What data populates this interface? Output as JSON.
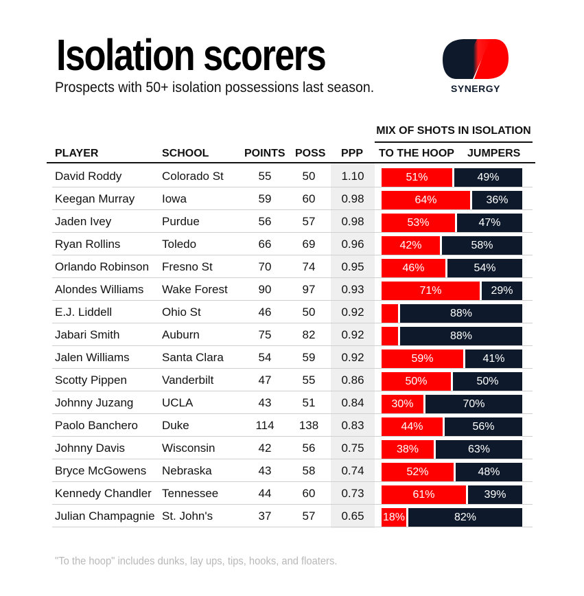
{
  "title": "Isolation scorers",
  "subtitle": "Prospects with 50+ isolation possessions last season.",
  "logo": {
    "text": "SYNERGY",
    "icon": "synergy-logo-icon"
  },
  "footnote": "\"To the hoop\" includes dunks, lay ups, tips, hooks, and floaters.",
  "colors": {
    "hoop": "#ff0000",
    "jumpers": "#0e1a2b",
    "ppp_band": "#efefef"
  },
  "chart_data": {
    "type": "table",
    "title": "Isolation scorers",
    "subtitle": "Prospects with 50+ isolation possessions last season.",
    "group_header": "MIX OF SHOTS IN ISOLATION",
    "columns": [
      "PLAYER",
      "SCHOOL",
      "POINTS",
      "POSS",
      "PPP",
      "TO THE HOOP",
      "JUMPERS"
    ],
    "rows": [
      {
        "player": "David Roddy",
        "school": "Colorado St",
        "points": "55",
        "poss": "50",
        "ppp": "1.10",
        "hoop": 51,
        "jumpers": 49,
        "hoop_label": "51%",
        "jumpers_label": "49%"
      },
      {
        "player": "Keegan Murray",
        "school": "Iowa",
        "points": "59",
        "poss": "60",
        "ppp": "0.98",
        "hoop": 64,
        "jumpers": 36,
        "hoop_label": "64%",
        "jumpers_label": "36%"
      },
      {
        "player": "Jaden Ivey",
        "school": "Purdue",
        "points": "56",
        "poss": "57",
        "ppp": "0.98",
        "hoop": 53,
        "jumpers": 47,
        "hoop_label": "53%",
        "jumpers_label": "47%"
      },
      {
        "player": "Ryan Rollins",
        "school": "Toledo",
        "points": "66",
        "poss": "69",
        "ppp": "0.96",
        "hoop": 42,
        "jumpers": 58,
        "hoop_label": "42%",
        "jumpers_label": "58%"
      },
      {
        "player": "Orlando Robinson",
        "school": "Fresno St",
        "points": "70",
        "poss": "74",
        "ppp": "0.95",
        "hoop": 46,
        "jumpers": 54,
        "hoop_label": "46%",
        "jumpers_label": "54%"
      },
      {
        "player": "Alondes Williams",
        "school": "Wake Forest",
        "points": "90",
        "poss": "97",
        "ppp": "0.93",
        "hoop": 71,
        "jumpers": 29,
        "hoop_label": "71%",
        "jumpers_label": "29%"
      },
      {
        "player": "E.J. Liddell",
        "school": "Ohio St",
        "points": "46",
        "poss": "50",
        "ppp": "0.92",
        "hoop": 12,
        "jumpers": 88,
        "hoop_label": "",
        "jumpers_label": "88%"
      },
      {
        "player": "Jabari Smith",
        "school": "Auburn",
        "points": "75",
        "poss": "82",
        "ppp": "0.92",
        "hoop": 12,
        "jumpers": 88,
        "hoop_label": "",
        "jumpers_label": "88%"
      },
      {
        "player": "Jalen Williams",
        "school": "Santa Clara",
        "points": "54",
        "poss": "59",
        "ppp": "0.92",
        "hoop": 59,
        "jumpers": 41,
        "hoop_label": "59%",
        "jumpers_label": "41%"
      },
      {
        "player": "Scotty Pippen",
        "school": "Vanderbilt",
        "points": "47",
        "poss": "55",
        "ppp": "0.86",
        "hoop": 50,
        "jumpers": 50,
        "hoop_label": "50%",
        "jumpers_label": "50%"
      },
      {
        "player": "Johnny Juzang",
        "school": "UCLA",
        "points": "43",
        "poss": "51",
        "ppp": "0.84",
        "hoop": 30,
        "jumpers": 70,
        "hoop_label": "30%",
        "jumpers_label": "70%"
      },
      {
        "player": "Paolo Banchero",
        "school": "Duke",
        "points": "114",
        "poss": "138",
        "ppp": "0.83",
        "hoop": 44,
        "jumpers": 56,
        "hoop_label": "44%",
        "jumpers_label": "56%"
      },
      {
        "player": "Johnny Davis",
        "school": "Wisconsin",
        "points": "42",
        "poss": "56",
        "ppp": "0.75",
        "hoop": 38,
        "jumpers": 63,
        "hoop_label": "38%",
        "jumpers_label": "63%"
      },
      {
        "player": "Bryce McGowens",
        "school": "Nebraska",
        "points": "43",
        "poss": "58",
        "ppp": "0.74",
        "hoop": 52,
        "jumpers": 48,
        "hoop_label": "52%",
        "jumpers_label": "48%"
      },
      {
        "player": "Kennedy Chandler",
        "school": "Tennessee",
        "points": "44",
        "poss": "60",
        "ppp": "0.73",
        "hoop": 61,
        "jumpers": 39,
        "hoop_label": "61%",
        "jumpers_label": "39%"
      },
      {
        "player": "Julian Champagnie",
        "school": "St. John's",
        "points": "37",
        "poss": "57",
        "ppp": "0.65",
        "hoop": 18,
        "jumpers": 82,
        "hoop_label": "18%",
        "jumpers_label": "82%"
      }
    ]
  }
}
